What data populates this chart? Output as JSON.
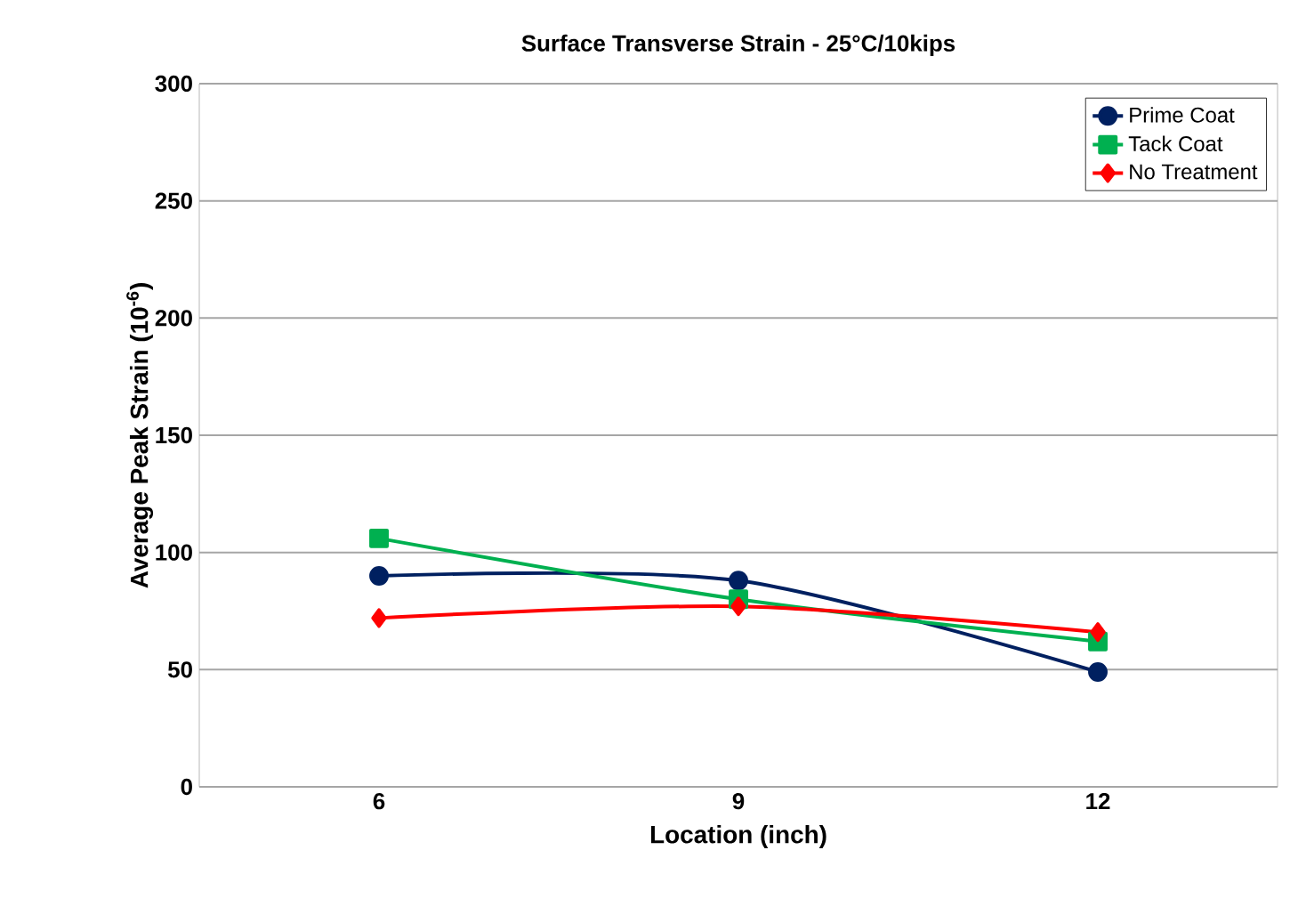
{
  "chart_data": {
    "type": "line",
    "title": "Surface Transverse Strain - 25°C/10kips",
    "xlabel": "Location (inch)",
    "ylabel": "Average Peak Strain (10$^{-6}$)",
    "categories": [
      "6",
      "9",
      "12"
    ],
    "series": [
      {
        "name": "Prime Coat",
        "color": "#002060",
        "marker": "circle",
        "values": [
          90,
          88,
          49
        ]
      },
      {
        "name": "Tack Coat",
        "color": "#00b050",
        "marker": "square",
        "values": [
          106,
          80,
          62
        ]
      },
      {
        "name": "No Treatment",
        "color": "#ff0000",
        "marker": "diamond",
        "values": [
          72,
          77,
          66
        ]
      }
    ],
    "ylim": [
      0,
      300
    ],
    "yticks": [
      0,
      50,
      100,
      150,
      200,
      250,
      300
    ],
    "grid": "y",
    "legend": "top right",
    "line_style": "solid"
  }
}
